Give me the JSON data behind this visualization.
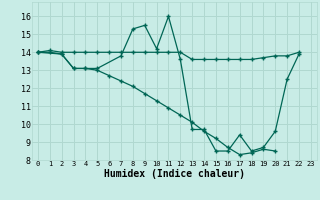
{
  "xlabel": "Humidex (Indice chaleur)",
  "xlim": [
    -0.5,
    23.5
  ],
  "ylim": [
    8,
    16.8
  ],
  "yticks": [
    8,
    9,
    10,
    11,
    12,
    13,
    14,
    15,
    16
  ],
  "xticks": [
    0,
    1,
    2,
    3,
    4,
    5,
    6,
    7,
    8,
    9,
    10,
    11,
    12,
    13,
    14,
    15,
    16,
    17,
    18,
    19,
    20,
    21,
    22,
    23
  ],
  "bg_color": "#c8ece6",
  "grid_color": "#b0d8d0",
  "line_color": "#006655",
  "line1_x": [
    0,
    1,
    2,
    3,
    4,
    5,
    6,
    7,
    8,
    9,
    10,
    11,
    12,
    13,
    14,
    15,
    16,
    17,
    18,
    19,
    20,
    21,
    22
  ],
  "line1_y": [
    14.0,
    14.1,
    14.0,
    14.0,
    14.0,
    14.0,
    14.0,
    14.0,
    14.0,
    14.0,
    14.0,
    14.0,
    14.0,
    13.6,
    13.6,
    13.6,
    13.6,
    13.6,
    13.6,
    13.7,
    13.8,
    13.8,
    14.0
  ],
  "line2_x": [
    0,
    2,
    3,
    4,
    5,
    7,
    8,
    9,
    10,
    11,
    12,
    13,
    14,
    15,
    16,
    17,
    18,
    19,
    20,
    21,
    22
  ],
  "line2_y": [
    14.0,
    13.9,
    13.1,
    13.1,
    13.1,
    13.8,
    15.3,
    15.5,
    14.2,
    16.0,
    13.6,
    9.7,
    9.7,
    8.5,
    8.5,
    9.4,
    8.5,
    8.7,
    9.6,
    12.5,
    13.9
  ],
  "line3_x": [
    0,
    1,
    2,
    3,
    4,
    5,
    6,
    7,
    8,
    9,
    10,
    11,
    12,
    13,
    14,
    15,
    16,
    17,
    18,
    19,
    20
  ],
  "line3_y": [
    14.0,
    14.0,
    13.9,
    13.1,
    13.1,
    13.0,
    12.7,
    12.4,
    12.1,
    11.7,
    11.3,
    10.9,
    10.5,
    10.1,
    9.6,
    9.2,
    8.7,
    8.3,
    8.4,
    8.6,
    8.5
  ],
  "marker": "+"
}
